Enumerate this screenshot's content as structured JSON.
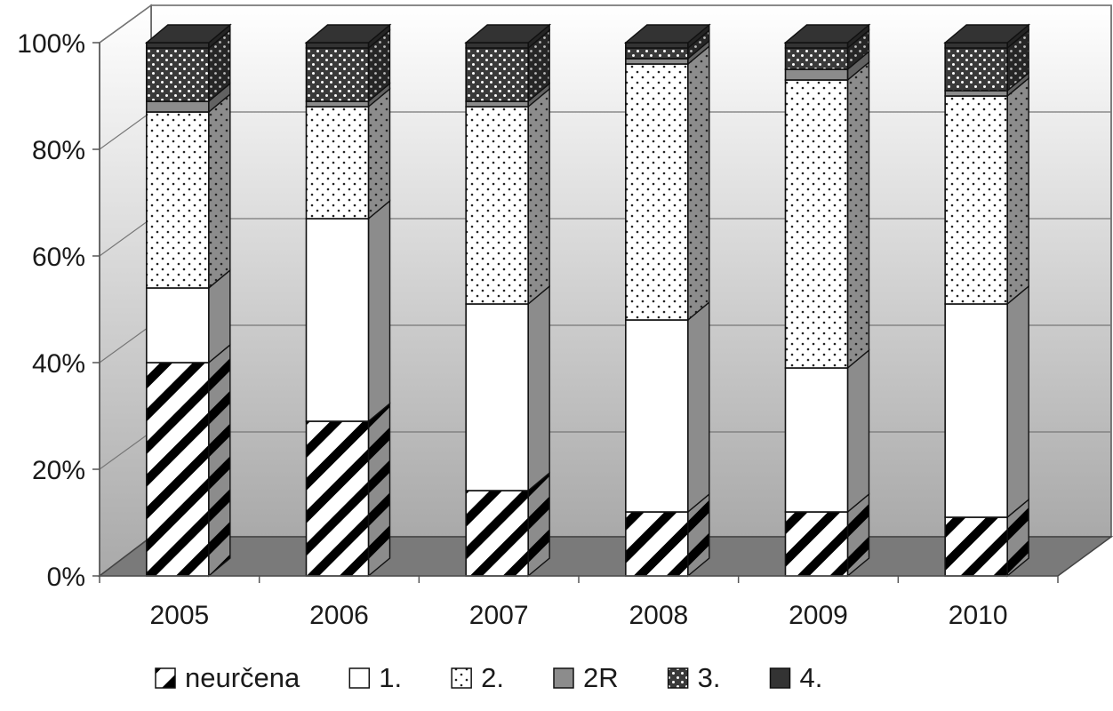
{
  "chart_data": {
    "type": "bar",
    "stacked": true,
    "percent": true,
    "three_d": true,
    "categories": [
      "2005",
      "2006",
      "2007",
      "2008",
      "2009",
      "2010"
    ],
    "y_ticks": [
      "0%",
      "20%",
      "40%",
      "60%",
      "80%",
      "100%"
    ],
    "ylim": [
      0,
      100
    ],
    "grid": true,
    "legend_position": "bottom",
    "series": [
      {
        "name": "neurčena",
        "pattern": "diagonal-hatch",
        "color": "#ffffff",
        "values": [
          40,
          29,
          16,
          12,
          12,
          11
        ]
      },
      {
        "name": "1.",
        "pattern": "solid",
        "color": "#ffffff",
        "values": [
          14,
          38,
          35,
          36,
          27,
          40
        ]
      },
      {
        "name": "2.",
        "pattern": "sparse-dots",
        "color": "#ffffff",
        "values": [
          33,
          21,
          37,
          48,
          54,
          39
        ]
      },
      {
        "name": "2R",
        "pattern": "solid",
        "color": "#8c8c8c",
        "values": [
          2,
          1,
          1,
          1,
          2,
          1
        ]
      },
      {
        "name": "3.",
        "pattern": "dense-dots",
        "color": "#555555",
        "values": [
          10,
          10,
          10,
          2,
          4,
          8
        ]
      },
      {
        "name": "4.",
        "pattern": "solid",
        "color": "#333333",
        "values": [
          1,
          1,
          1,
          1,
          1,
          1
        ]
      }
    ]
  }
}
